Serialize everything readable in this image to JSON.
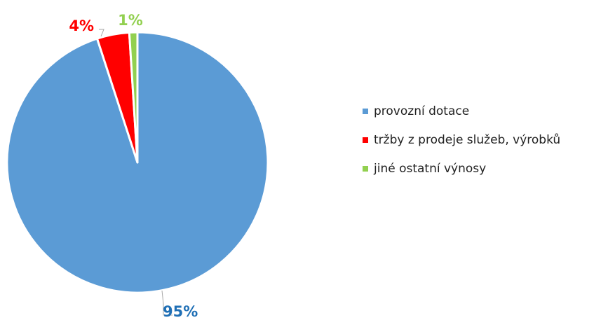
{
  "chart_data": {
    "type": "pie",
    "categories": [
      "provozní dotace",
      "tržby z prodeje služeb, výrobků",
      "jiné ostatní výnosy"
    ],
    "values": [
      95,
      4,
      1
    ],
    "data_labels": [
      "95%",
      "4%",
      "1%"
    ],
    "colors": [
      "#5b9bd5",
      "#ff0000",
      "#92d050"
    ],
    "label_colors": [
      "#1f6fb5",
      "#ff0000",
      "#92d050"
    ],
    "legend_position": "right",
    "title": ""
  }
}
